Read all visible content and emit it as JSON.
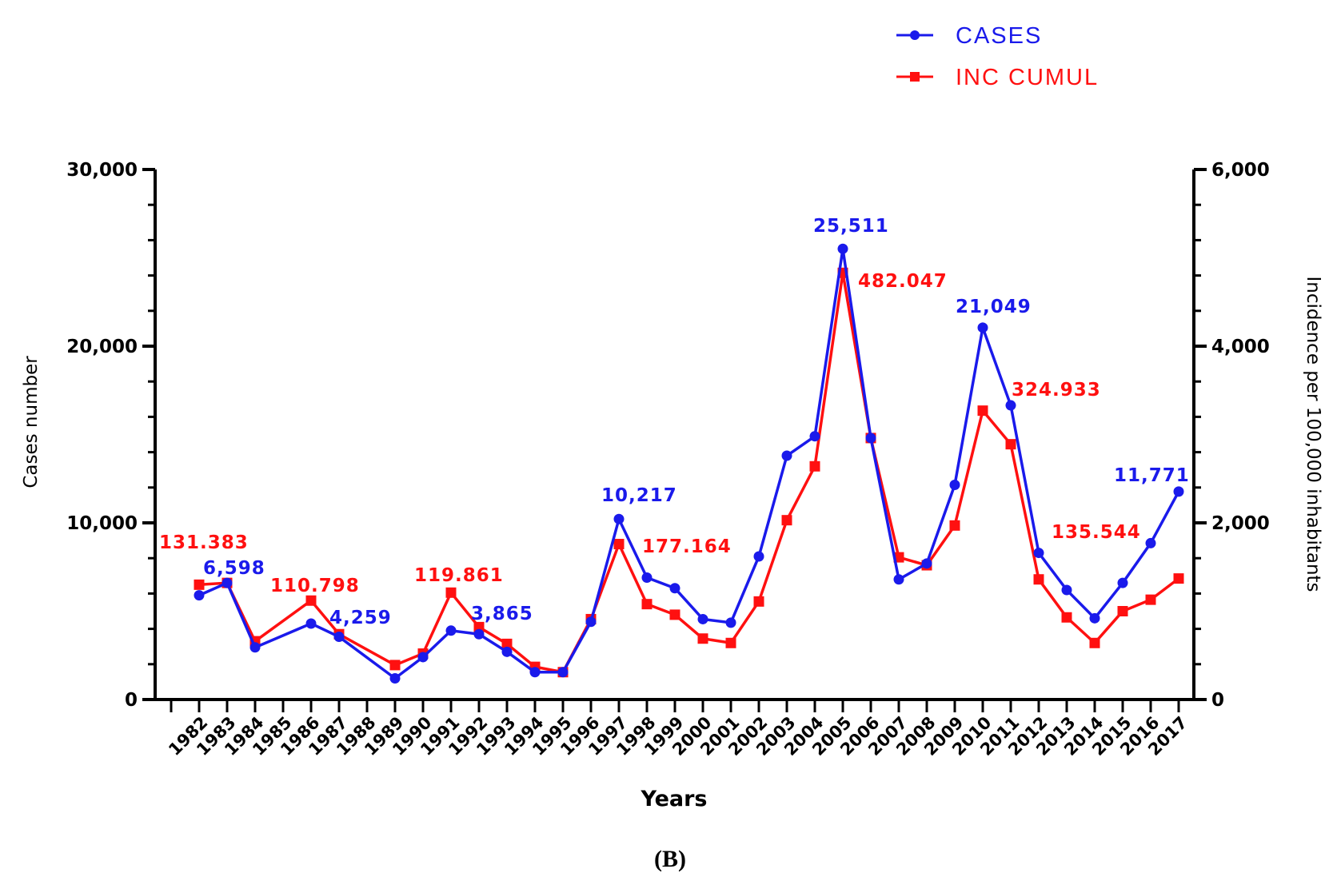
{
  "chart_data": {
    "type": "line",
    "panel_label": "(B)",
    "xlabel": "Years",
    "ylabel_left": "Cases number",
    "ylabel_right": "Incidence per 100,000 inhabitants",
    "ylim_left": [
      0,
      30000
    ],
    "ylim_right": [
      0,
      6000
    ],
    "yticks_left": [
      "0",
      "10,000",
      "20,000",
      "30,000"
    ],
    "yticks_right": [
      "0",
      "2,000",
      "4,000",
      "6,000"
    ],
    "yticks_left_values": [
      0,
      10000,
      20000,
      30000
    ],
    "yticks_right_values": [
      0,
      2000,
      4000,
      6000
    ],
    "categories": [
      "1982",
      "1983",
      "1984",
      "1985",
      "1986",
      "1987",
      "1988",
      "1989",
      "1990",
      "1991",
      "1992",
      "1993",
      "1994",
      "1995",
      "1996",
      "1997",
      "1998",
      "1999",
      "2000",
      "2001",
      "2002",
      "2003",
      "2004",
      "2005",
      "2006",
      "2007",
      "2008",
      "2009",
      "2010",
      "2011",
      "2012",
      "2013",
      "2014",
      "2015",
      "2016",
      "2017"
    ],
    "legend_position": "top-right",
    "series": [
      {
        "name": "CASES",
        "axis": "left",
        "color": "#1a1aeb",
        "marker": "circle",
        "values": [
          5900,
          6598,
          2950,
          null,
          4300,
          3550,
          null,
          1200,
          2400,
          3900,
          3700,
          2700,
          1550,
          1550,
          4400,
          10217,
          6900,
          6300,
          4550,
          4350,
          8100,
          13800,
          14900,
          25511,
          14800,
          6800,
          7700,
          12150,
          21049,
          16650,
          8300,
          6200,
          4600,
          6600,
          8850,
          11771
        ]
      },
      {
        "name": "INC CUMUL",
        "axis": "right",
        "color": "#ff1010",
        "marker": "square",
        "values": [
          1300,
          1320,
          660,
          null,
          1120,
          740,
          null,
          390,
          520,
          1210,
          820,
          630,
          370,
          310,
          910,
          1760,
          1080,
          960,
          690,
          640,
          1110,
          2030,
          2640,
          4830,
          2960,
          1610,
          1520,
          1970,
          3270,
          2890,
          1360,
          930,
          640,
          1000,
          1130,
          1370
        ]
      }
    ],
    "annotations": [
      {
        "text": "131.383",
        "color": "#ff1010"
      },
      {
        "text": "6,598",
        "color": "#1a1aeb"
      },
      {
        "text": "110.798",
        "color": "#ff1010"
      },
      {
        "text": "4,259",
        "color": "#1a1aeb"
      },
      {
        "text": "119.861",
        "color": "#ff1010"
      },
      {
        "text": "3,865",
        "color": "#1a1aeb"
      },
      {
        "text": "10,217",
        "color": "#1a1aeb"
      },
      {
        "text": "177.164",
        "color": "#ff1010"
      },
      {
        "text": "25,511",
        "color": "#1a1aeb"
      },
      {
        "text": "482.047",
        "color": "#ff1010"
      },
      {
        "text": "21,049",
        "color": "#1a1aeb"
      },
      {
        "text": "324.933",
        "color": "#ff1010"
      },
      {
        "text": "135.544",
        "color": "#ff1010"
      },
      {
        "text": "11,771",
        "color": "#1a1aeb"
      }
    ]
  }
}
